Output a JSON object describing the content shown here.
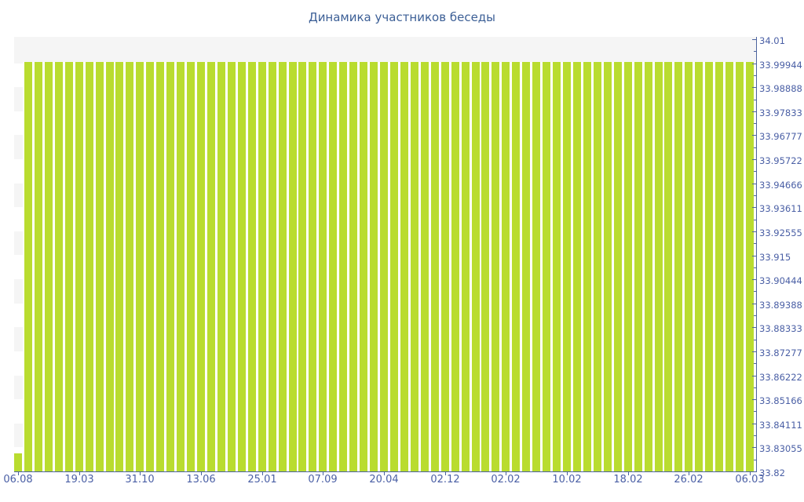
{
  "title": "Динамика участников беседы",
  "colors": {
    "bar": "#b9dc2f",
    "axis": "#4c639e",
    "tick": "#4c639e",
    "label": "#4a5fa5",
    "title": "#3c5f96",
    "band": "#f5f5f5",
    "background": "#ffffff"
  },
  "chart_data": {
    "type": "bar",
    "title": "Динамика участников беседы",
    "xlabel": "",
    "ylabel": "",
    "ylim": [
      33.82,
      34.01
    ],
    "grid": "alternating horizontal bands, no gridlines",
    "legend": false,
    "y_tick_labels": [
      "34.01",
      "33.99944",
      "33.98888",
      "33.97833",
      "33.96777",
      "33.95722",
      "33.94666",
      "33.93611",
      "33.92555",
      "33.915",
      "33.90444",
      "33.89388",
      "33.88333",
      "33.87277",
      "33.86222",
      "33.85166",
      "33.84111",
      "33.83055",
      "33.82"
    ],
    "x_tick_labels": [
      "06.08",
      "19.03",
      "31.10",
      "13.06",
      "25.01",
      "07.09",
      "20.04",
      "02.12",
      "02.02",
      "10.02",
      "18.02",
      "26.02",
      "06.03"
    ],
    "x_label_every_n_bars": 6,
    "values": [
      33.828,
      34,
      34,
      34,
      34,
      34,
      34,
      34,
      34,
      34,
      34,
      34,
      34,
      34,
      34,
      34,
      34,
      34,
      34,
      34,
      34,
      34,
      34,
      34,
      34,
      34,
      34,
      34,
      34,
      34,
      34,
      34,
      34,
      34,
      34,
      34,
      34,
      34,
      34,
      34,
      34,
      34,
      34,
      34,
      34,
      34,
      34,
      34,
      34,
      34,
      34,
      34,
      34,
      34,
      34,
      34,
      34,
      34,
      34,
      34,
      34,
      34,
      34,
      34,
      34,
      34,
      34,
      34,
      34,
      34,
      34,
      34,
      34
    ]
  }
}
